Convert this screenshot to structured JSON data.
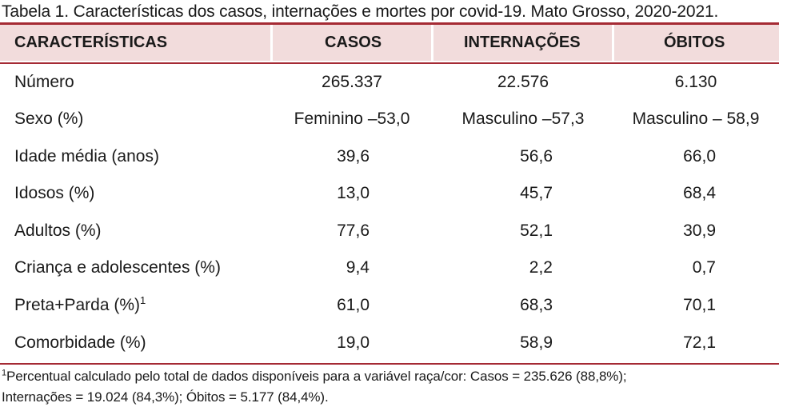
{
  "caption": "Tabela 1. Características dos casos, internações e mortes por covid-19. Mato Grosso, 2020-2021.",
  "header": {
    "col0": "CARACTERÍSTICAS",
    "col1": "CASOS",
    "col2": "INTERNAÇÕES",
    "col3": "ÓBITOS"
  },
  "rows": [
    {
      "label": "Número",
      "casos": "265.337",
      "internacoes": "22.576",
      "obitos": "6.130"
    },
    {
      "label": "Sexo (%)",
      "casos": "Feminino –53,0",
      "internacoes": "Masculino –57,3",
      "obitos": "Masculino – 58,9"
    },
    {
      "label": "Idade média (anos)",
      "casos": "39,6",
      "internacoes": "56,6",
      "obitos": "66,0"
    },
    {
      "label": "Idosos (%)",
      "casos": "13,0",
      "internacoes": "45,7",
      "obitos": "68,4"
    },
    {
      "label": "Adultos (%)",
      "casos": "77,6",
      "internacoes": "52,1",
      "obitos": "30,9"
    },
    {
      "label": "Criança e adolescentes (%)",
      "casos": "9,4",
      "internacoes": "2,2",
      "obitos": "0,7"
    },
    {
      "label": "Preta+Parda (%)",
      "label_sup": "1",
      "casos": "61,0",
      "internacoes": "68,3",
      "obitos": "70,1"
    },
    {
      "label": "Comorbidade (%)",
      "casos": "19,0",
      "internacoes": "58,9",
      "obitos": "72,1"
    }
  ],
  "footnote": {
    "marker": "1",
    "line1": "Percentual calculado pelo total de dados disponíveis para a variável raça/cor: Casos = 235.626 (88,8%);",
    "line2": "Internações = 19.024 (84,3%); Óbitos = 5.177 (84,4%)."
  }
}
